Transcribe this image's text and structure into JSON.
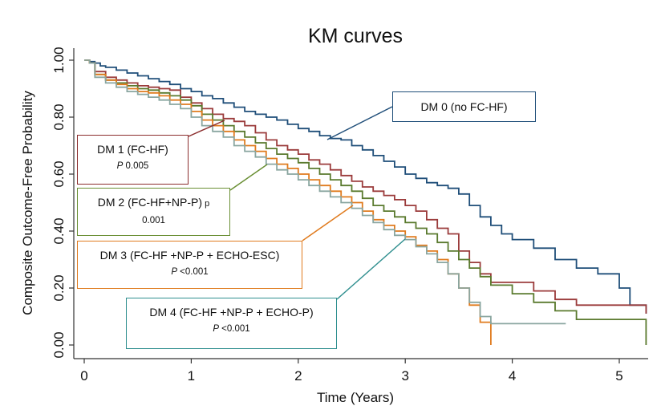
{
  "chart_data": {
    "type": "line",
    "title": "KM curves",
    "xlabel": "Time (Years)",
    "ylabel": "Composite Outcome-Free Probability",
    "xlim": [
      -0.1,
      5.35
    ],
    "ylim": [
      -0.05,
      1.02
    ],
    "xticks": [
      "0",
      "1",
      "2",
      "3",
      "4",
      "5"
    ],
    "yticks": [
      "0.00",
      "0.20",
      "0.40",
      "0.60",
      "0.80",
      "1.00"
    ],
    "grid": false,
    "legend": "none",
    "step": true,
    "series": [
      {
        "key": "dm0",
        "color": "#1f4e79",
        "x": [
          0,
          0.05,
          0.1,
          0.15,
          0.2,
          0.3,
          0.4,
          0.5,
          0.6,
          0.7,
          0.8,
          0.9,
          1.0,
          1.1,
          1.2,
          1.3,
          1.4,
          1.5,
          1.6,
          1.7,
          1.8,
          1.9,
          2.0,
          2.1,
          2.2,
          2.3,
          2.4,
          2.5,
          2.6,
          2.7,
          2.8,
          2.9,
          3.0,
          3.1,
          3.2,
          3.3,
          3.4,
          3.5,
          3.6,
          3.7,
          3.8,
          3.9,
          4.0,
          4.2,
          4.4,
          4.6,
          4.8,
          5.0,
          5.1,
          5.25
        ],
        "y": [
          1.0,
          0.995,
          0.99,
          0.98,
          0.975,
          0.965,
          0.955,
          0.945,
          0.935,
          0.925,
          0.915,
          0.9,
          0.89,
          0.875,
          0.865,
          0.85,
          0.835,
          0.82,
          0.81,
          0.8,
          0.79,
          0.775,
          0.76,
          0.75,
          0.735,
          0.725,
          0.72,
          0.7,
          0.685,
          0.665,
          0.645,
          0.625,
          0.6,
          0.585,
          0.57,
          0.56,
          0.55,
          0.53,
          0.49,
          0.45,
          0.42,
          0.39,
          0.37,
          0.34,
          0.3,
          0.27,
          0.25,
          0.2,
          0.14,
          0.11
        ]
      },
      {
        "key": "dm1",
        "color": "#9b3b3b",
        "x": [
          0,
          0.05,
          0.1,
          0.2,
          0.3,
          0.4,
          0.5,
          0.6,
          0.7,
          0.8,
          0.9,
          1.0,
          1.1,
          1.2,
          1.3,
          1.4,
          1.5,
          1.6,
          1.7,
          1.8,
          1.9,
          2.0,
          2.1,
          2.2,
          2.3,
          2.4,
          2.5,
          2.6,
          2.7,
          2.8,
          2.9,
          3.0,
          3.1,
          3.2,
          3.3,
          3.4,
          3.5,
          3.6,
          3.7,
          3.8,
          4.2,
          4.4,
          4.6,
          5.25
        ],
        "y": [
          1.0,
          0.99,
          0.96,
          0.94,
          0.93,
          0.92,
          0.91,
          0.905,
          0.9,
          0.895,
          0.87,
          0.85,
          0.83,
          0.81,
          0.795,
          0.785,
          0.77,
          0.745,
          0.72,
          0.7,
          0.685,
          0.67,
          0.65,
          0.635,
          0.615,
          0.595,
          0.575,
          0.555,
          0.54,
          0.525,
          0.51,
          0.49,
          0.47,
          0.44,
          0.41,
          0.39,
          0.33,
          0.29,
          0.25,
          0.22,
          0.19,
          0.16,
          0.14,
          0.11
        ]
      },
      {
        "key": "dm2",
        "color": "#5a7a2e",
        "x": [
          0,
          0.05,
          0.1,
          0.2,
          0.3,
          0.4,
          0.5,
          0.6,
          0.7,
          0.8,
          0.9,
          1.0,
          1.1,
          1.2,
          1.3,
          1.4,
          1.5,
          1.6,
          1.7,
          1.8,
          1.9,
          2.0,
          2.1,
          2.2,
          2.3,
          2.4,
          2.5,
          2.6,
          2.7,
          2.8,
          2.9,
          3.0,
          3.1,
          3.2,
          3.3,
          3.4,
          3.5,
          3.6,
          3.7,
          3.8,
          4.0,
          4.2,
          4.4,
          4.6,
          5.25
        ],
        "y": [
          1.0,
          0.99,
          0.95,
          0.93,
          0.92,
          0.91,
          0.9,
          0.895,
          0.885,
          0.875,
          0.86,
          0.84,
          0.81,
          0.79,
          0.77,
          0.75,
          0.73,
          0.71,
          0.69,
          0.67,
          0.655,
          0.64,
          0.62,
          0.6,
          0.58,
          0.56,
          0.54,
          0.515,
          0.49,
          0.47,
          0.45,
          0.43,
          0.41,
          0.39,
          0.36,
          0.33,
          0.3,
          0.27,
          0.24,
          0.21,
          0.18,
          0.15,
          0.12,
          0.09,
          0.0
        ]
      },
      {
        "key": "dm3",
        "color": "#e07b1e",
        "x": [
          0,
          0.05,
          0.1,
          0.2,
          0.3,
          0.4,
          0.5,
          0.6,
          0.7,
          0.8,
          0.9,
          1.0,
          1.1,
          1.2,
          1.3,
          1.4,
          1.5,
          1.6,
          1.7,
          1.8,
          1.9,
          2.0,
          2.1,
          2.2,
          2.3,
          2.4,
          2.5,
          2.6,
          2.7,
          2.8,
          2.9,
          3.0,
          3.1,
          3.2,
          3.3,
          3.4,
          3.5,
          3.6,
          3.7,
          3.8
        ],
        "y": [
          1.0,
          0.99,
          0.95,
          0.93,
          0.915,
          0.9,
          0.89,
          0.885,
          0.875,
          0.86,
          0.845,
          0.82,
          0.79,
          0.77,
          0.75,
          0.72,
          0.7,
          0.68,
          0.655,
          0.635,
          0.62,
          0.6,
          0.58,
          0.56,
          0.54,
          0.52,
          0.5,
          0.47,
          0.44,
          0.42,
          0.4,
          0.38,
          0.35,
          0.33,
          0.3,
          0.25,
          0.2,
          0.14,
          0.08,
          0.0
        ]
      },
      {
        "key": "dm4",
        "color": "#8aa6a0",
        "x": [
          0,
          0.05,
          0.1,
          0.2,
          0.3,
          0.4,
          0.5,
          0.6,
          0.7,
          0.8,
          0.9,
          1.0,
          1.1,
          1.2,
          1.3,
          1.4,
          1.5,
          1.6,
          1.7,
          1.8,
          1.9,
          2.0,
          2.1,
          2.2,
          2.3,
          2.4,
          2.5,
          2.6,
          2.7,
          2.8,
          2.9,
          3.0,
          3.1,
          3.2,
          3.3,
          3.4,
          3.5,
          3.6,
          3.7,
          3.8,
          4.2,
          4.5
        ],
        "y": [
          1.0,
          0.99,
          0.94,
          0.92,
          0.905,
          0.89,
          0.88,
          0.87,
          0.86,
          0.845,
          0.83,
          0.8,
          0.77,
          0.75,
          0.73,
          0.7,
          0.68,
          0.66,
          0.635,
          0.615,
          0.6,
          0.58,
          0.56,
          0.54,
          0.52,
          0.5,
          0.48,
          0.455,
          0.43,
          0.405,
          0.385,
          0.37,
          0.345,
          0.32,
          0.29,
          0.25,
          0.2,
          0.15,
          0.1,
          0.075,
          0.075,
          0.075
        ]
      }
    ],
    "annotations": [
      {
        "key": "dm0",
        "line1": "DM 0 (no FC-HF)",
        "p_prefix": "",
        "p_label": "",
        "p_value": "",
        "color": "#1f4e79"
      },
      {
        "key": "dm1",
        "line1": "DM 1 (FC-HF)",
        "p_prefix": "",
        "p_label": "P",
        "p_value": " 0.005",
        "color": "#8b2e2e"
      },
      {
        "key": "dm2",
        "line1": "DM 2 (FC-HF+NP-P)",
        "p_prefix": " p",
        "p_label": "",
        "p_value": "0.001",
        "color": "#6a8f34"
      },
      {
        "key": "dm3",
        "line1": "DM 3 (FC-HF +NP-P + ECHO-ESC)",
        "p_prefix": "",
        "p_label": "P",
        "p_value": " <0.001",
        "color": "#e07b1e"
      },
      {
        "key": "dm4",
        "line1": "DM 4 (FC-HF +NP-P + ECHO-P)",
        "p_prefix": "",
        "p_label": "P",
        "p_value": " <0.001",
        "color": "#2f8f8f"
      }
    ]
  }
}
